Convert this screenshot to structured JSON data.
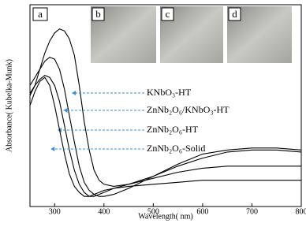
{
  "chart_data": {
    "type": "line",
    "x_label": "Wavelength( nm)",
    "y_label": "Absorbance( Kubelka-Munk)",
    "panel_labels": [
      "a",
      "b",
      "c",
      "d"
    ],
    "x": [
      250,
      260,
      270,
      280,
      290,
      300,
      310,
      320,
      330,
      340,
      350,
      360,
      370,
      380,
      390,
      400,
      420,
      450,
      500,
      550,
      600,
      650,
      700,
      750,
      800
    ],
    "series": [
      {
        "name": "KNbO₃-HT",
        "color": "#000000",
        "values": [
          0.55,
          0.6,
          0.68,
          0.76,
          0.82,
          0.86,
          0.88,
          0.87,
          0.83,
          0.75,
          0.6,
          0.42,
          0.28,
          0.18,
          0.13,
          0.11,
          0.1,
          0.11,
          0.15,
          0.2,
          0.24,
          0.27,
          0.28,
          0.28,
          0.27
        ]
      },
      {
        "name": "ZnNb₂O₆/KNbO₃-HT",
        "color": "#000000",
        "values": [
          0.6,
          0.64,
          0.68,
          0.72,
          0.74,
          0.73,
          0.68,
          0.58,
          0.45,
          0.32,
          0.2,
          0.12,
          0.08,
          0.06,
          0.05,
          0.05,
          0.06,
          0.09,
          0.15,
          0.21,
          0.26,
          0.28,
          0.29,
          0.29,
          0.28
        ]
      },
      {
        "name": "ZnNb₂O₆-HT",
        "color": "#000000",
        "values": [
          0.56,
          0.6,
          0.63,
          0.65,
          0.64,
          0.6,
          0.52,
          0.4,
          0.28,
          0.18,
          0.11,
          0.07,
          0.05,
          0.05,
          0.06,
          0.07,
          0.09,
          0.11,
          0.14,
          0.17,
          0.19,
          0.2,
          0.2,
          0.2,
          0.2
        ]
      },
      {
        "name": "ZnNb₂O₆-Solid",
        "color": "#000000",
        "values": [
          0.5,
          0.57,
          0.62,
          0.64,
          0.6,
          0.5,
          0.38,
          0.26,
          0.16,
          0.1,
          0.07,
          0.05,
          0.05,
          0.06,
          0.07,
          0.08,
          0.09,
          0.1,
          0.11,
          0.12,
          0.13,
          0.13,
          0.13,
          0.13,
          0.13
        ]
      }
    ],
    "xlim": [
      250,
      800
    ],
    "xticks": [
      300,
      400,
      500,
      600,
      700,
      800
    ],
    "ylim": [
      0,
      1
    ]
  }
}
